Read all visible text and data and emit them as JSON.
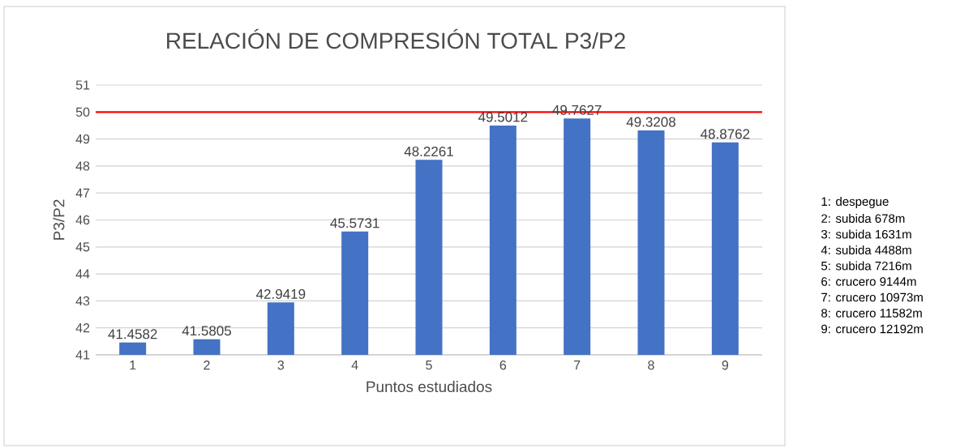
{
  "chart_data": {
    "type": "bar",
    "title": "RELACIÓN DE COMPRESIÓN TOTAL P3/P2",
    "xlabel": "Puntos estudiados",
    "ylabel": "P3/P2",
    "categories": [
      "1",
      "2",
      "3",
      "4",
      "5",
      "6",
      "7",
      "8",
      "9"
    ],
    "values": [
      41.4582,
      41.5805,
      42.9419,
      45.5731,
      48.2261,
      49.5012,
      49.7627,
      49.3208,
      48.8762
    ],
    "value_labels": [
      "41.4582",
      "41.5805",
      "42.9419",
      "45.5731",
      "48.2261",
      "49.5012",
      "49.7627",
      "49.3208",
      "48.8762"
    ],
    "color": "#4472c4",
    "ylim": [
      41,
      51
    ],
    "yticks": [
      41,
      42,
      43,
      44,
      45,
      46,
      47,
      48,
      49,
      50,
      51
    ],
    "grid": "y",
    "ref_lines": [
      {
        "axis": "y",
        "value": 50,
        "color": "#ff0000"
      }
    ],
    "annotations": [
      "1: despegue",
      "2: subida 678m",
      "3: subida 1631m",
      "4: subida 4488m",
      "5: subida 7216m",
      "6: crucero 9144m",
      "7: crucero 10973m",
      "8: crucero 11582m",
      "9: crucero 12192m"
    ]
  }
}
